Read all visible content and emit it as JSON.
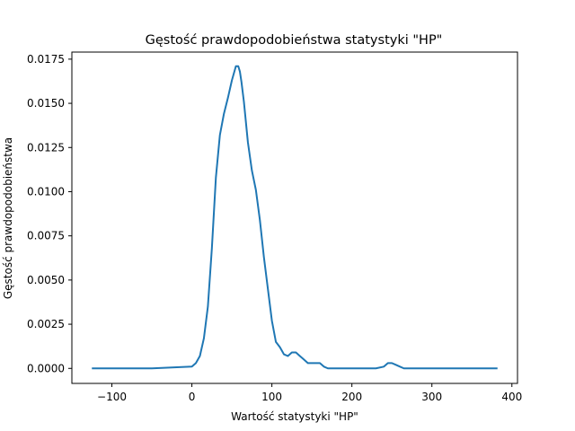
{
  "chart_data": {
    "type": "line",
    "title": "Gęstość prawdopodobieństwa statystyki \"HP\"",
    "xlabel": "Wartość statystyki \"HP\"",
    "ylabel": "Gęstość prawdopodobieństwa",
    "xlim": [
      -150,
      407
    ],
    "ylim": [
      -0.00085,
      0.0179
    ],
    "grid": false,
    "x_ticks": [
      {
        "value": -100,
        "label": "−100"
      },
      {
        "value": 0,
        "label": "0"
      },
      {
        "value": 100,
        "label": "100"
      },
      {
        "value": 200,
        "label": "200"
      },
      {
        "value": 300,
        "label": "300"
      },
      {
        "value": 400,
        "label": "400"
      }
    ],
    "y_ticks": [
      {
        "value": 0.0,
        "label": "0.0000"
      },
      {
        "value": 0.0025,
        "label": "0.0025"
      },
      {
        "value": 0.005,
        "label": "0.0050"
      },
      {
        "value": 0.0075,
        "label": "0.0075"
      },
      {
        "value": 0.01,
        "label": "0.0100"
      },
      {
        "value": 0.0125,
        "label": "0.0125"
      },
      {
        "value": 0.015,
        "label": "0.0150"
      },
      {
        "value": 0.0175,
        "label": "0.0175"
      }
    ],
    "series": [
      {
        "color": "#1f77b4",
        "x": [
          -125,
          -50,
          0,
          5,
          10,
          15,
          20,
          25,
          30,
          35,
          40,
          45,
          50,
          55,
          58,
          60,
          62,
          65,
          70,
          75,
          80,
          85,
          90,
          95,
          100,
          105,
          110,
          115,
          120,
          125,
          130,
          135,
          140,
          145,
          150,
          155,
          160,
          165,
          170,
          180,
          200,
          220,
          230,
          240,
          245,
          250,
          255,
          260,
          265,
          270,
          300,
          382
        ],
        "y": [
          0.0,
          0.0,
          0.0001,
          0.0003,
          0.0007,
          0.0017,
          0.0035,
          0.0068,
          0.0108,
          0.0132,
          0.0144,
          0.0153,
          0.0163,
          0.0171,
          0.0171,
          0.0168,
          0.0162,
          0.0151,
          0.0128,
          0.0112,
          0.0101,
          0.0084,
          0.0063,
          0.0045,
          0.0027,
          0.0015,
          0.0012,
          0.0008,
          0.0007,
          0.0009,
          0.0009,
          0.0007,
          0.0005,
          0.0003,
          0.0003,
          0.0003,
          0.0003,
          0.0001,
          0.0,
          0.0,
          0.0,
          0.0,
          0.0,
          0.0001,
          0.0003,
          0.0003,
          0.0002,
          0.0001,
          0.0,
          0.0,
          0.0,
          0.0
        ]
      }
    ]
  }
}
